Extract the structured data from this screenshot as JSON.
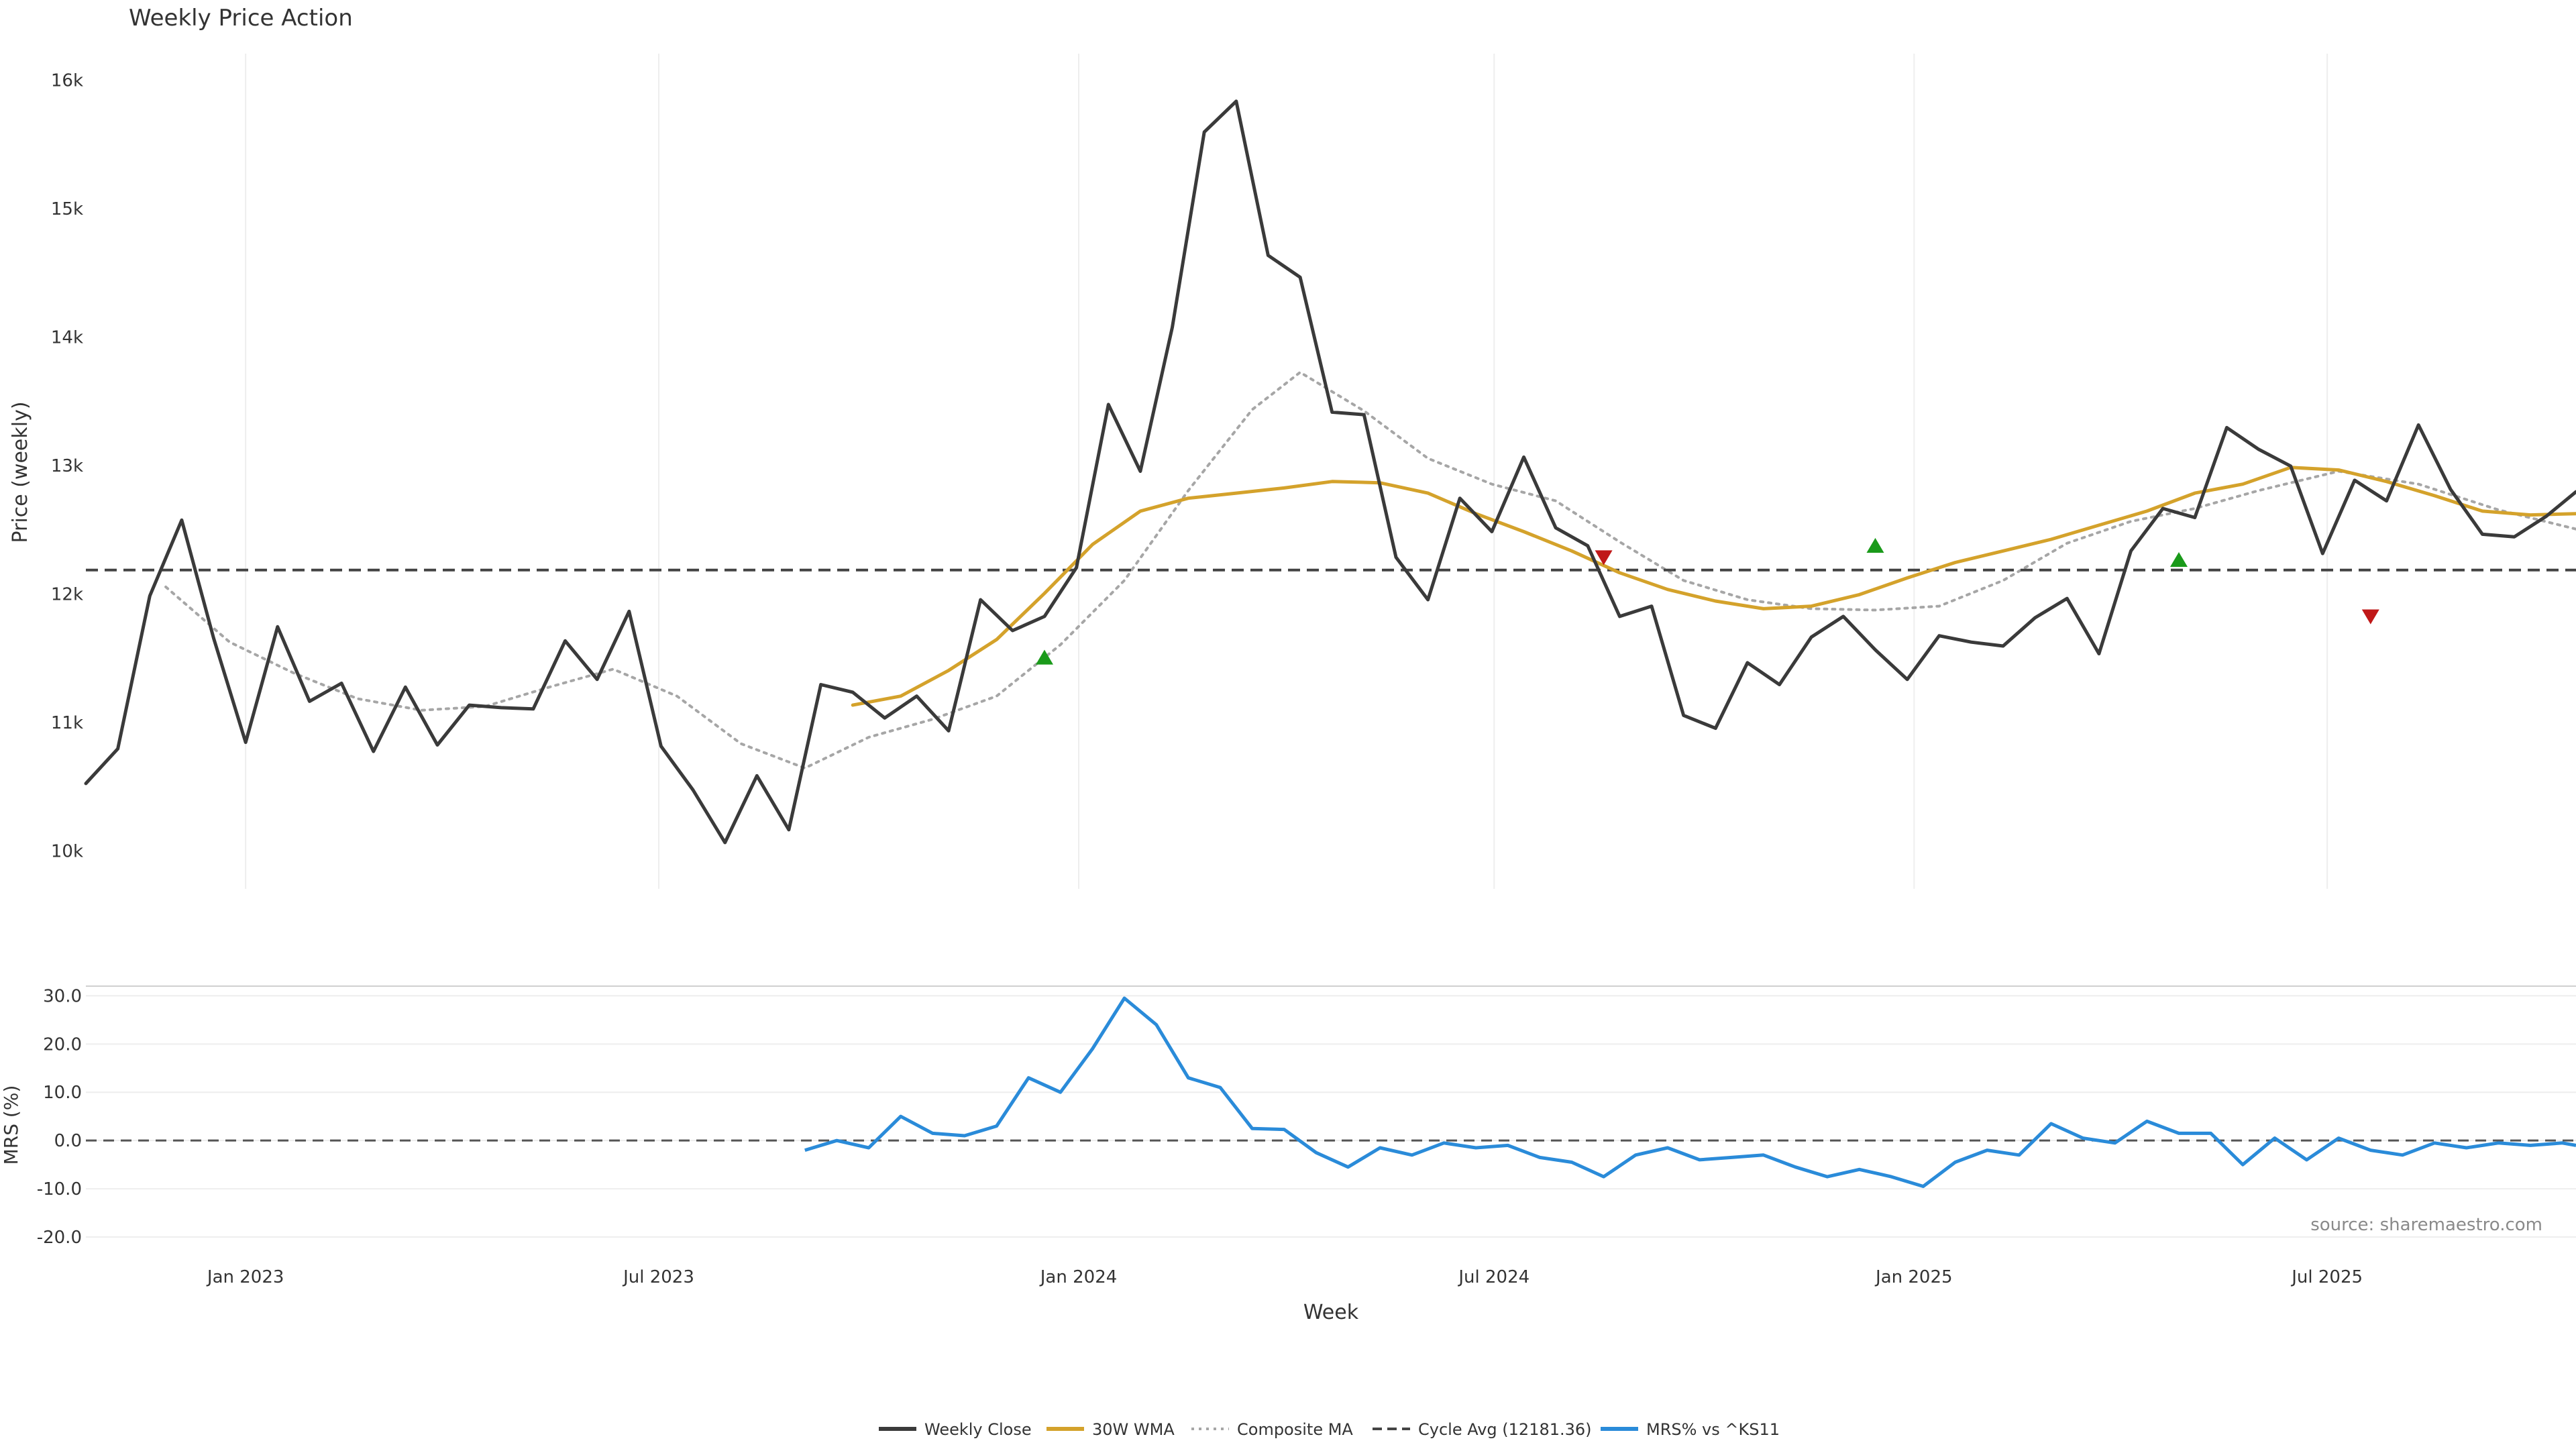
{
  "chart_data": {
    "type": "line",
    "title": "Weekly Price Action",
    "source_note": "source: sharemaestro.com",
    "x_label": "Week",
    "x_ticks": [
      "Jan 2023",
      "Jul 2023",
      "Jan 2024",
      "Jul 2024",
      "Jan 2025",
      "Jul 2025"
    ],
    "x_tick_dates": [
      "2023-01-01",
      "2023-07-01",
      "2024-01-01",
      "2024-07-01",
      "2025-01-01",
      "2025-07-01"
    ],
    "x_range": [
      "2022-10-23",
      "2025-10-18"
    ],
    "price_panel": {
      "y_label": "Price (weekly)",
      "y_ticks": [
        "10k",
        "11k",
        "12k",
        "13k",
        "14k",
        "15k",
        "16k"
      ],
      "y_tick_values": [
        10000,
        11000,
        12000,
        13000,
        14000,
        15000,
        16000
      ],
      "y_range": [
        9700,
        16200
      ],
      "cycle_avg": 12181.36
    },
    "mrs_panel": {
      "y_label": "MRS (%)",
      "y_ticks": [
        "-20.0",
        "-10.0",
        "0.0",
        "10.0",
        "20.0",
        "30.0"
      ],
      "y_tick_values": [
        -20,
        -10,
        0,
        10,
        20,
        30
      ],
      "y_range": [
        -25,
        32
      ],
      "zero_line": 0
    },
    "series": [
      {
        "name": "Weekly Close",
        "color": "#3a3a3a",
        "style": "solid",
        "panel": "price",
        "points": [
          [
            "2022-10-23",
            10520
          ],
          [
            "2022-11-06",
            10790
          ],
          [
            "2022-11-20",
            11980
          ],
          [
            "2022-12-04",
            12570
          ],
          [
            "2022-12-18",
            11650
          ],
          [
            "2023-01-01",
            10840
          ],
          [
            "2023-01-15",
            11740
          ],
          [
            "2023-01-29",
            11160
          ],
          [
            "2023-02-12",
            11300
          ],
          [
            "2023-02-26",
            10770
          ],
          [
            "2023-03-12",
            11270
          ],
          [
            "2023-03-26",
            10820
          ],
          [
            "2023-04-09",
            11130
          ],
          [
            "2023-04-23",
            11110
          ],
          [
            "2023-05-07",
            11100
          ],
          [
            "2023-05-21",
            11630
          ],
          [
            "2023-06-04",
            11330
          ],
          [
            "2023-06-18",
            11860
          ],
          [
            "2023-07-02",
            10810
          ],
          [
            "2023-07-16",
            10470
          ],
          [
            "2023-07-30",
            10060
          ],
          [
            "2023-08-13",
            10580
          ],
          [
            "2023-08-27",
            10160
          ],
          [
            "2023-09-10",
            11290
          ],
          [
            "2023-09-24",
            11230
          ],
          [
            "2023-10-08",
            11030
          ],
          [
            "2023-10-22",
            11200
          ],
          [
            "2023-11-05",
            10930
          ],
          [
            "2023-11-19",
            11950
          ],
          [
            "2023-12-03",
            11710
          ],
          [
            "2023-12-17",
            11820
          ],
          [
            "2023-12-31",
            12200
          ],
          [
            "2024-01-14",
            13470
          ],
          [
            "2024-01-28",
            12950
          ],
          [
            "2024-02-11",
            14070
          ],
          [
            "2024-02-25",
            15590
          ],
          [
            "2024-03-10",
            15830
          ],
          [
            "2024-03-24",
            14630
          ],
          [
            "2024-04-07",
            14460
          ],
          [
            "2024-04-21",
            13410
          ],
          [
            "2024-05-05",
            13390
          ],
          [
            "2024-05-19",
            12280
          ],
          [
            "2024-06-02",
            11950
          ],
          [
            "2024-06-16",
            12740
          ],
          [
            "2024-06-30",
            12480
          ],
          [
            "2024-07-14",
            13060
          ],
          [
            "2024-07-28",
            12510
          ],
          [
            "2024-08-11",
            12370
          ],
          [
            "2024-08-25",
            11820
          ],
          [
            "2024-09-08",
            11900
          ],
          [
            "2024-09-22",
            11050
          ],
          [
            "2024-10-06",
            10950
          ],
          [
            "2024-10-20",
            11460
          ],
          [
            "2024-11-03",
            11290
          ],
          [
            "2024-11-17",
            11660
          ],
          [
            "2024-12-01",
            11820
          ],
          [
            "2024-12-15",
            11560
          ],
          [
            "2024-12-29",
            11330
          ],
          [
            "2025-01-12",
            11670
          ],
          [
            "2025-01-26",
            11620
          ],
          [
            "2025-02-09",
            11590
          ],
          [
            "2025-02-23",
            11810
          ],
          [
            "2025-03-09",
            11960
          ],
          [
            "2025-03-23",
            11530
          ],
          [
            "2025-04-06",
            12330
          ],
          [
            "2025-04-20",
            12660
          ],
          [
            "2025-05-04",
            12590
          ],
          [
            "2025-05-18",
            13290
          ],
          [
            "2025-06-01",
            13120
          ],
          [
            "2025-06-15",
            12990
          ],
          [
            "2025-06-29",
            12310
          ],
          [
            "2025-07-13",
            12880
          ],
          [
            "2025-07-27",
            12720
          ],
          [
            "2025-08-10",
            13310
          ],
          [
            "2025-08-24",
            12810
          ],
          [
            "2025-09-07",
            12460
          ],
          [
            "2025-09-21",
            12440
          ],
          [
            "2025-10-05",
            12600
          ],
          [
            "2025-10-18",
            12790
          ]
        ]
      },
      {
        "name": "30W WMA",
        "color": "#d4a22b",
        "style": "solid",
        "panel": "price",
        "points": [
          [
            "2023-09-24",
            11130
          ],
          [
            "2023-10-15",
            11200
          ],
          [
            "2023-11-05",
            11400
          ],
          [
            "2023-11-26",
            11640
          ],
          [
            "2023-12-17",
            12000
          ],
          [
            "2024-01-07",
            12380
          ],
          [
            "2024-01-28",
            12640
          ],
          [
            "2024-02-18",
            12740
          ],
          [
            "2024-03-10",
            12780
          ],
          [
            "2024-03-31",
            12820
          ],
          [
            "2024-04-21",
            12870
          ],
          [
            "2024-05-12",
            12860
          ],
          [
            "2024-06-02",
            12780
          ],
          [
            "2024-06-23",
            12620
          ],
          [
            "2024-07-14",
            12480
          ],
          [
            "2024-08-04",
            12330
          ],
          [
            "2024-08-25",
            12160
          ],
          [
            "2024-09-15",
            12030
          ],
          [
            "2024-10-06",
            11940
          ],
          [
            "2024-10-27",
            11880
          ],
          [
            "2024-11-17",
            11900
          ],
          [
            "2024-12-08",
            11990
          ],
          [
            "2024-12-29",
            12120
          ],
          [
            "2025-01-19",
            12240
          ],
          [
            "2025-02-09",
            12330
          ],
          [
            "2025-03-02",
            12420
          ],
          [
            "2025-03-23",
            12530
          ],
          [
            "2025-04-13",
            12640
          ],
          [
            "2025-05-04",
            12780
          ],
          [
            "2025-05-25",
            12850
          ],
          [
            "2025-06-15",
            12980
          ],
          [
            "2025-07-06",
            12960
          ],
          [
            "2025-07-27",
            12870
          ],
          [
            "2025-08-17",
            12760
          ],
          [
            "2025-09-07",
            12640
          ],
          [
            "2025-09-28",
            12610
          ],
          [
            "2025-10-18",
            12620
          ]
        ]
      },
      {
        "name": "Composite MA",
        "color": "#a6a6a6",
        "style": "dotted",
        "panel": "price",
        "points": [
          [
            "2022-11-27",
            12050
          ],
          [
            "2022-12-25",
            11620
          ],
          [
            "2023-01-22",
            11380
          ],
          [
            "2023-02-19",
            11180
          ],
          [
            "2023-03-19",
            11090
          ],
          [
            "2023-04-16",
            11120
          ],
          [
            "2023-05-14",
            11270
          ],
          [
            "2023-06-11",
            11410
          ],
          [
            "2023-07-09",
            11200
          ],
          [
            "2023-08-06",
            10830
          ],
          [
            "2023-09-03",
            10640
          ],
          [
            "2023-10-01",
            10880
          ],
          [
            "2023-10-29",
            11020
          ],
          [
            "2023-11-26",
            11200
          ],
          [
            "2023-12-24",
            11600
          ],
          [
            "2024-01-21",
            12100
          ],
          [
            "2024-02-18",
            12800
          ],
          [
            "2024-03-17",
            13430
          ],
          [
            "2024-04-07",
            13720
          ],
          [
            "2024-05-05",
            13420
          ],
          [
            "2024-06-02",
            13050
          ],
          [
            "2024-06-30",
            12850
          ],
          [
            "2024-07-28",
            12720
          ],
          [
            "2024-08-25",
            12400
          ],
          [
            "2024-09-22",
            12100
          ],
          [
            "2024-10-20",
            11950
          ],
          [
            "2024-11-17",
            11880
          ],
          [
            "2024-12-15",
            11870
          ],
          [
            "2025-01-12",
            11900
          ],
          [
            "2025-02-09",
            12100
          ],
          [
            "2025-03-09",
            12390
          ],
          [
            "2025-04-06",
            12560
          ],
          [
            "2025-05-04",
            12660
          ],
          [
            "2025-06-01",
            12800
          ],
          [
            "2025-07-06",
            12950
          ],
          [
            "2025-08-10",
            12850
          ],
          [
            "2025-09-14",
            12650
          ],
          [
            "2025-10-18",
            12500
          ]
        ]
      },
      {
        "name": "Cycle Avg (12181.36)",
        "color": "#444444",
        "style": "dashed",
        "panel": "price"
      },
      {
        "name": "MRS% vs ^KS11",
        "color": "#2a8bd9",
        "style": "solid",
        "panel": "mrs",
        "points": [
          [
            "2023-09-03",
            -2
          ],
          [
            "2023-09-17",
            0
          ],
          [
            "2023-10-01",
            -1.5
          ],
          [
            "2023-10-15",
            5
          ],
          [
            "2023-10-29",
            1.5
          ],
          [
            "2023-11-12",
            1
          ],
          [
            "2023-11-26",
            3
          ],
          [
            "2023-12-10",
            13
          ],
          [
            "2023-12-24",
            10
          ],
          [
            "2024-01-07",
            19
          ],
          [
            "2024-01-21",
            29.5
          ],
          [
            "2024-02-04",
            24
          ],
          [
            "2024-02-18",
            13
          ],
          [
            "2024-03-03",
            11
          ],
          [
            "2024-03-17",
            2.5
          ],
          [
            "2024-03-31",
            2.3
          ],
          [
            "2024-04-14",
            -2.5
          ],
          [
            "2024-04-28",
            -5.5
          ],
          [
            "2024-05-12",
            -1.5
          ],
          [
            "2024-05-26",
            -3
          ],
          [
            "2024-06-09",
            -0.5
          ],
          [
            "2024-06-23",
            -1.5
          ],
          [
            "2024-07-07",
            -1
          ],
          [
            "2024-07-21",
            -3.5
          ],
          [
            "2024-08-04",
            -4.5
          ],
          [
            "2024-08-18",
            -7.5
          ],
          [
            "2024-09-01",
            -3
          ],
          [
            "2024-09-15",
            -1.5
          ],
          [
            "2024-09-29",
            -4
          ],
          [
            "2024-10-13",
            -3.5
          ],
          [
            "2024-10-27",
            -3
          ],
          [
            "2024-11-10",
            -5.5
          ],
          [
            "2024-11-24",
            -7.5
          ],
          [
            "2024-12-08",
            -6
          ],
          [
            "2024-12-22",
            -7.5
          ],
          [
            "2025-01-05",
            -9.5
          ],
          [
            "2025-01-19",
            -4.5
          ],
          [
            "2025-02-02",
            -2
          ],
          [
            "2025-02-16",
            -3
          ],
          [
            "2025-03-02",
            3.5
          ],
          [
            "2025-03-16",
            0.5
          ],
          [
            "2025-03-30",
            -0.5
          ],
          [
            "2025-04-13",
            4
          ],
          [
            "2025-04-27",
            1.5
          ],
          [
            "2025-05-11",
            1.5
          ],
          [
            "2025-05-25",
            -5
          ],
          [
            "2025-06-08",
            0.5
          ],
          [
            "2025-06-22",
            -4
          ],
          [
            "2025-07-06",
            0.5
          ],
          [
            "2025-07-20",
            -2
          ],
          [
            "2025-08-03",
            -3
          ],
          [
            "2025-08-17",
            -0.5
          ],
          [
            "2025-08-31",
            -1.5
          ],
          [
            "2025-09-14",
            -0.5
          ],
          [
            "2025-09-28",
            -1
          ],
          [
            "2025-10-12",
            -0.5
          ],
          [
            "2025-10-18",
            -1
          ]
        ]
      }
    ],
    "markers": [
      {
        "kind": "buy",
        "date": "2023-12-17",
        "value": 11500,
        "color": "#1a9a1a"
      },
      {
        "kind": "sell",
        "date": "2024-08-18",
        "value": 12280,
        "color": "#c01818"
      },
      {
        "kind": "buy",
        "date": "2024-12-15",
        "value": 12370,
        "color": "#1a9a1a"
      },
      {
        "kind": "sell",
        "date": "2025-07-20",
        "value": 11820,
        "color": "#c01818"
      },
      {
        "kind": "buy",
        "date": "2025-04-27",
        "value": 12260,
        "color": "#1a9a1a"
      }
    ],
    "legend_position": "bottom-center"
  }
}
